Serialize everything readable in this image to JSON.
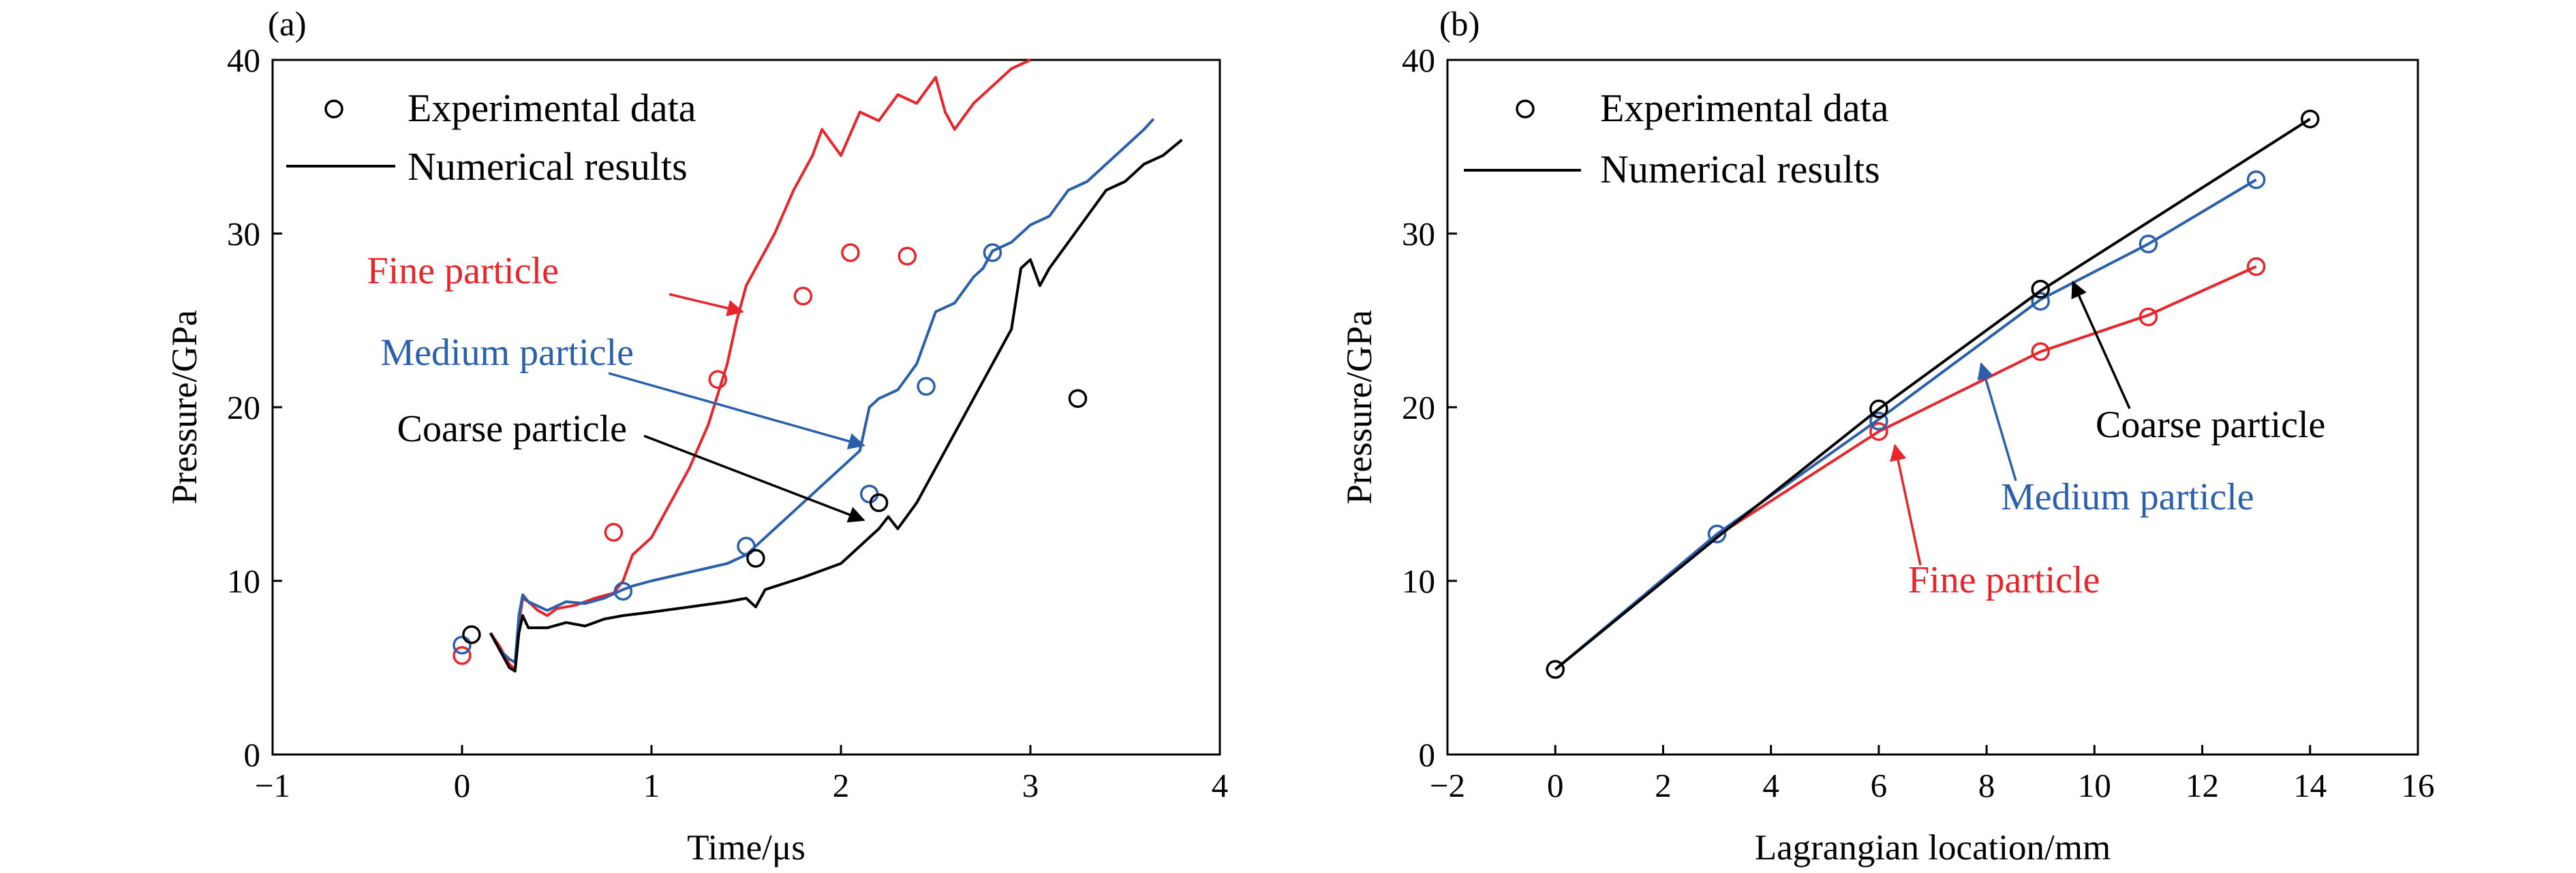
{
  "chart_data": [
    {
      "panel_label": "(a)",
      "type": "line",
      "xlabel": "Time/μs",
      "ylabel": "Pressure/GPa",
      "xlim": [
        -1,
        4
      ],
      "ylim": [
        0,
        40
      ],
      "xticks": [
        -1,
        0,
        1,
        2,
        3,
        4
      ],
      "yticks": [
        0,
        10,
        20,
        30,
        40
      ],
      "grid": false,
      "legend": {
        "placement": "top-left",
        "entries": [
          {
            "marker": "circle",
            "label": "Experimental data"
          },
          {
            "marker": "line",
            "label": "Numerical results"
          }
        ]
      },
      "series": [
        {
          "name": "Fine particle",
          "color": "#e8252a",
          "line": [
            [
              0.15,
              7.0
            ],
            [
              0.2,
              6.2
            ],
            [
              0.25,
              5.2
            ],
            [
              0.28,
              4.9
            ],
            [
              0.3,
              7.5
            ],
            [
              0.32,
              9.0
            ],
            [
              0.35,
              8.8
            ],
            [
              0.4,
              8.3
            ],
            [
              0.45,
              8.0
            ],
            [
              0.5,
              8.4
            ],
            [
              0.6,
              8.6
            ],
            [
              0.7,
              9.0
            ],
            [
              0.8,
              9.3
            ],
            [
              0.85,
              10.0
            ],
            [
              0.9,
              11.5
            ],
            [
              1.0,
              12.5
            ],
            [
              1.1,
              14.5
            ],
            [
              1.2,
              16.5
            ],
            [
              1.3,
              19.0
            ],
            [
              1.4,
              22.5
            ],
            [
              1.45,
              25.0
            ],
            [
              1.5,
              27.0
            ],
            [
              1.55,
              28.0
            ],
            [
              1.65,
              30.0
            ],
            [
              1.75,
              32.5
            ],
            [
              1.85,
              34.5
            ],
            [
              1.9,
              36.0
            ],
            [
              2.0,
              34.5
            ],
            [
              2.1,
              37.0
            ],
            [
              2.2,
              36.5
            ],
            [
              2.3,
              38.0
            ],
            [
              2.4,
              37.5
            ],
            [
              2.5,
              39.0
            ],
            [
              2.55,
              37.0
            ],
            [
              2.6,
              36.0
            ],
            [
              2.7,
              37.5
            ],
            [
              2.8,
              38.5
            ],
            [
              2.9,
              39.5
            ],
            [
              3.0,
              40.0
            ]
          ],
          "points": [
            [
              0.0,
              5.7
            ],
            [
              0.8,
              12.8
            ],
            [
              1.35,
              21.6
            ],
            [
              1.8,
              26.4
            ],
            [
              2.05,
              28.9
            ],
            [
              2.35,
              28.7
            ]
          ]
        },
        {
          "name": "Medium particle",
          "color": "#2a5fac",
          "line": [
            [
              0.15,
              7.0
            ],
            [
              0.2,
              6.0
            ],
            [
              0.25,
              5.5
            ],
            [
              0.28,
              5.3
            ],
            [
              0.3,
              8.0
            ],
            [
              0.32,
              9.2
            ],
            [
              0.35,
              8.8
            ],
            [
              0.45,
              8.3
            ],
            [
              0.55,
              8.8
            ],
            [
              0.65,
              8.7
            ],
            [
              0.75,
              9.0
            ],
            [
              0.85,
              9.5
            ],
            [
              0.9,
              9.7
            ],
            [
              1.0,
              10.0
            ],
            [
              1.2,
              10.5
            ],
            [
              1.4,
              11.0
            ],
            [
              1.5,
              11.5
            ],
            [
              1.6,
              12.5
            ],
            [
              1.7,
              13.5
            ],
            [
              1.8,
              14.5
            ],
            [
              1.9,
              15.5
            ],
            [
              2.0,
              16.5
            ],
            [
              2.1,
              17.5
            ],
            [
              2.15,
              20.0
            ],
            [
              2.2,
              20.5
            ],
            [
              2.3,
              21.0
            ],
            [
              2.4,
              22.5
            ],
            [
              2.45,
              24.0
            ],
            [
              2.5,
              25.5
            ],
            [
              2.6,
              26.0
            ],
            [
              2.7,
              27.5
            ],
            [
              2.75,
              28.0
            ],
            [
              2.8,
              29.0
            ],
            [
              2.9,
              29.5
            ],
            [
              3.0,
              30.5
            ],
            [
              3.1,
              31.0
            ],
            [
              3.2,
              32.5
            ],
            [
              3.3,
              33.0
            ],
            [
              3.4,
              34.0
            ],
            [
              3.5,
              35.0
            ],
            [
              3.6,
              36.0
            ],
            [
              3.65,
              36.6
            ]
          ],
          "points": [
            [
              0.0,
              6.3
            ],
            [
              0.85,
              9.4
            ],
            [
              1.5,
              12.0
            ],
            [
              2.15,
              15.0
            ],
            [
              2.45,
              21.2
            ],
            [
              2.8,
              28.9
            ]
          ]
        },
        {
          "name": "Coarse particle",
          "color": "#000000",
          "line": [
            [
              0.15,
              7.0
            ],
            [
              0.2,
              6.0
            ],
            [
              0.25,
              5.0
            ],
            [
              0.28,
              4.8
            ],
            [
              0.3,
              7.0
            ],
            [
              0.32,
              8.0
            ],
            [
              0.35,
              7.3
            ],
            [
              0.45,
              7.3
            ],
            [
              0.55,
              7.6
            ],
            [
              0.65,
              7.4
            ],
            [
              0.75,
              7.8
            ],
            [
              0.85,
              8.0
            ],
            [
              1.0,
              8.2
            ],
            [
              1.2,
              8.5
            ],
            [
              1.4,
              8.8
            ],
            [
              1.5,
              9.0
            ],
            [
              1.55,
              8.5
            ],
            [
              1.6,
              9.5
            ],
            [
              1.8,
              10.2
            ],
            [
              2.0,
              11.0
            ],
            [
              2.1,
              12.0
            ],
            [
              2.2,
              13.0
            ],
            [
              2.25,
              13.7
            ],
            [
              2.3,
              13.0
            ],
            [
              2.4,
              14.5
            ],
            [
              2.5,
              16.5
            ],
            [
              2.6,
              18.5
            ],
            [
              2.7,
              20.5
            ],
            [
              2.8,
              22.5
            ],
            [
              2.9,
              24.5
            ],
            [
              2.95,
              28.0
            ],
            [
              3.0,
              28.5
            ],
            [
              3.05,
              27.0
            ],
            [
              3.1,
              28.0
            ],
            [
              3.2,
              29.5
            ],
            [
              3.3,
              31.0
            ],
            [
              3.4,
              32.5
            ],
            [
              3.5,
              33.0
            ],
            [
              3.6,
              34.0
            ],
            [
              3.7,
              34.5
            ],
            [
              3.8,
              35.4
            ]
          ],
          "points": [
            [
              0.05,
              6.9
            ],
            [
              1.55,
              11.3
            ],
            [
              2.2,
              14.5
            ],
            [
              3.25,
              20.5
            ]
          ]
        }
      ],
      "annotations": [
        {
          "text": "Fine particle",
          "color": "#e8252a",
          "target": [
            1.48,
            25.5
          ]
        },
        {
          "text": "Medium particle",
          "color": "#2a5fac",
          "target": [
            2.12,
            17.8
          ]
        },
        {
          "text": "Coarse particle",
          "color": "#000000",
          "target": [
            2.12,
            13.5
          ]
        }
      ]
    },
    {
      "panel_label": "(b)",
      "type": "line",
      "xlabel": "Lagrangian location/mm",
      "ylabel": "Pressure/GPa",
      "xlim": [
        -2,
        16
      ],
      "ylim": [
        0,
        40
      ],
      "xticks": [
        -2,
        0,
        2,
        4,
        6,
        8,
        10,
        12,
        14,
        16
      ],
      "yticks": [
        0,
        10,
        20,
        30,
        40
      ],
      "grid": false,
      "legend": {
        "placement": "top-left",
        "entries": [
          {
            "marker": "circle",
            "label": "Experimental data"
          },
          {
            "marker": "line",
            "label": "Numerical results"
          }
        ]
      },
      "series": [
        {
          "name": "Fine particle",
          "color": "#e8252a",
          "line": [
            [
              0,
              4.9
            ],
            [
              3,
              12.6
            ],
            [
              6,
              18.6
            ],
            [
              9,
              23.2
            ],
            [
              11,
              25.3
            ],
            [
              13,
              28.1
            ]
          ],
          "points": [
            [
              6,
              18.6
            ],
            [
              9,
              23.2
            ],
            [
              11,
              25.2
            ],
            [
              13,
              28.1
            ]
          ]
        },
        {
          "name": "Medium particle",
          "color": "#2a5fac",
          "line": [
            [
              0,
              4.9
            ],
            [
              3,
              12.7
            ],
            [
              6,
              19.3
            ],
            [
              9,
              26.2
            ],
            [
              11,
              29.4
            ],
            [
              13,
              33.1
            ]
          ],
          "points": [
            [
              3,
              12.7
            ],
            [
              6,
              19.2
            ],
            [
              9,
              26.1
            ],
            [
              11,
              29.4
            ],
            [
              13,
              33.1
            ]
          ]
        },
        {
          "name": "Coarse particle",
          "color": "#000000",
          "line": [
            [
              0,
              4.9
            ],
            [
              3,
              12.5
            ],
            [
              6,
              19.9
            ],
            [
              9,
              26.7
            ],
            [
              14,
              36.6
            ]
          ],
          "points": [
            [
              0,
              4.9
            ],
            [
              6,
              19.9
            ],
            [
              9,
              26.8
            ],
            [
              14,
              36.6
            ]
          ]
        }
      ],
      "annotations": [
        {
          "text": "Coarse particle",
          "color": "#000000",
          "target": [
            9.6,
            27.2
          ]
        },
        {
          "text": "Medium particle",
          "color": "#2a5fac",
          "target": [
            7.9,
            22.5
          ]
        },
        {
          "text": "Fine particle",
          "color": "#e8252a",
          "target": [
            6.3,
            17.8
          ]
        }
      ]
    }
  ]
}
